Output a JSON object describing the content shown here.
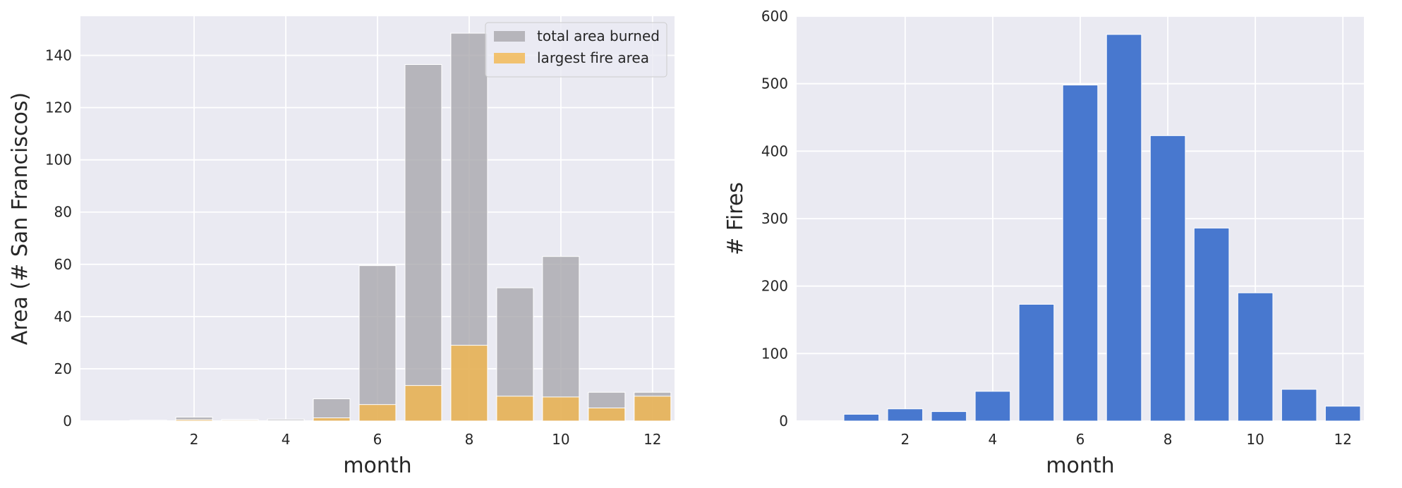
{
  "chart_data": [
    {
      "type": "bar",
      "x": [
        1,
        2,
        3,
        4,
        5,
        6,
        7,
        8,
        9,
        10,
        11,
        12
      ],
      "series": [
        {
          "name": "total area burned",
          "values": [
            0.3,
            1.5,
            0.6,
            0.7,
            8.5,
            59.5,
            136.5,
            148.5,
            51,
            63,
            11,
            11
          ],
          "color": "#a9a8ac",
          "opacity": 0.8
        },
        {
          "name": "largest fire area",
          "values": [
            0.1,
            0.5,
            0.3,
            0.2,
            1.2,
            6.3,
            13.6,
            29,
            9.5,
            9.2,
            5,
            9.5
          ],
          "color": "#f3b64e",
          "opacity": 0.8
        }
      ],
      "xticks": [
        2,
        4,
        6,
        8,
        10,
        12
      ],
      "yticks": [
        0,
        20,
        40,
        60,
        80,
        100,
        120,
        140
      ],
      "xlim": [
        -0.48,
        12.48
      ],
      "ylim": [
        0,
        155
      ],
      "xlabel": "month",
      "ylabel": "Area (# San Franciscos)",
      "legend": "top-right",
      "grid": true
    },
    {
      "type": "bar",
      "x": [
        1,
        2,
        3,
        4,
        5,
        6,
        7,
        8,
        9,
        10,
        11,
        12
      ],
      "series": [
        {
          "name": "# Fires",
          "values": [
            10,
            18,
            14,
            44,
            173,
            498,
            573,
            423,
            286,
            190,
            47,
            22
          ],
          "color": "#4878cf",
          "opacity": 1
        }
      ],
      "xticks": [
        2,
        4,
        6,
        8,
        10,
        12
      ],
      "yticks": [
        0,
        100,
        200,
        300,
        400,
        500,
        600
      ],
      "xlim": [
        -0.48,
        12.48
      ],
      "ylim": [
        0,
        600
      ],
      "xlabel": "month",
      "ylabel": "# Fires",
      "grid": true
    }
  ],
  "style": {
    "axes_bg": "#eaeaf2",
    "grid_color": "#ffffff",
    "text_color": "#262626"
  }
}
